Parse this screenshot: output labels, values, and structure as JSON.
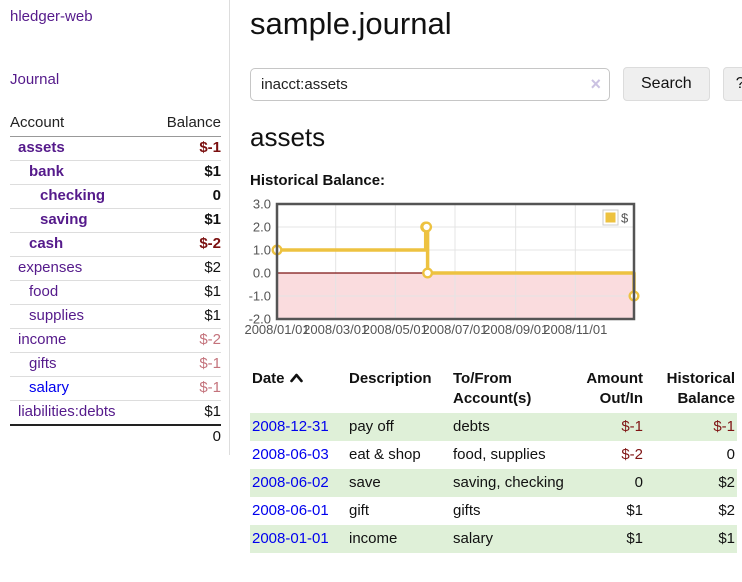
{
  "sidebar": {
    "brand": "hledger-web",
    "journal_link": "Journal",
    "accounts_header": "Account",
    "balance_header": "Balance",
    "accounts": [
      {
        "name": "assets",
        "depth": 1,
        "bold": true,
        "link_color": "purple",
        "balance": "$-1",
        "balance_tone": "neg-strong"
      },
      {
        "name": "bank",
        "depth": 2,
        "bold": true,
        "link_color": "purple",
        "balance": "$1",
        "balance_tone": "normal"
      },
      {
        "name": "checking",
        "depth": 3,
        "bold": true,
        "link_color": "purple",
        "balance": "0",
        "balance_tone": "normal"
      },
      {
        "name": "saving",
        "depth": 3,
        "bold": true,
        "link_color": "purple",
        "balance": "$1",
        "balance_tone": "normal"
      },
      {
        "name": "cash",
        "depth": 2,
        "bold": true,
        "link_color": "purple",
        "balance": "$-2",
        "balance_tone": "neg-strong"
      },
      {
        "name": "expenses",
        "depth": 1,
        "bold": false,
        "link_color": "purple",
        "balance": "$2",
        "balance_tone": "normal"
      },
      {
        "name": "food",
        "depth": 2,
        "bold": false,
        "link_color": "purple",
        "balance": "$1",
        "balance_tone": "normal"
      },
      {
        "name": "supplies",
        "depth": 2,
        "bold": false,
        "link_color": "purple",
        "balance": "$1",
        "balance_tone": "normal"
      },
      {
        "name": "income",
        "depth": 1,
        "bold": false,
        "link_color": "purple",
        "balance": "$-2",
        "balance_tone": "neg-dim"
      },
      {
        "name": "gifts",
        "depth": 2,
        "bold": false,
        "link_color": "purple",
        "balance": "$-1",
        "balance_tone": "neg-dim"
      },
      {
        "name": "salary",
        "depth": 2,
        "bold": false,
        "link_color": "blue",
        "balance": "$-1",
        "balance_tone": "neg-dim"
      },
      {
        "name": "liabilities:debts",
        "depth": 1,
        "bold": false,
        "link_color": "purple",
        "balance": "$1",
        "balance_tone": "normal"
      }
    ],
    "total": "0"
  },
  "main": {
    "title": "sample.journal",
    "search": {
      "value": "inacct:assets",
      "button_label": "Search",
      "help_label": "?",
      "clear_icon": "×"
    },
    "account_heading": "assets"
  },
  "chart_data": {
    "type": "line",
    "title": "Historical Balance:",
    "style": "steps",
    "xlim": [
      "2008-01-01",
      "2008-12-31"
    ],
    "ylim": [
      -2,
      3
    ],
    "y_ticks": [
      3,
      2,
      1,
      0,
      -1,
      -2
    ],
    "x_ticks": [
      "2008/01/01",
      "2008/03/01",
      "2008/05/01",
      "2008/07/01",
      "2008/09/01",
      "2008/11/01"
    ],
    "series": [
      {
        "name": "$",
        "color": "#EDC240",
        "points": [
          [
            "2008-01-01",
            1
          ],
          [
            "2008-06-01",
            2
          ],
          [
            "2008-06-02",
            2
          ],
          [
            "2008-06-03",
            0
          ],
          [
            "2008-12-31",
            -1
          ]
        ]
      }
    ],
    "legend_position": "top-right",
    "colors": {
      "grid": "#e4e4e4",
      "border": "#545454",
      "axis_text": "#545454",
      "zero_line": "#7C1313",
      "negative_region": "#FADCDE"
    }
  },
  "register": {
    "headers": {
      "date": "Date",
      "description": "Description",
      "accounts": "To/From Account(s)",
      "amount": "Amount Out/In",
      "balance": "Historical Balance"
    },
    "sort_direction": "ascending",
    "row_stripe_color": "#DFF0D8",
    "rows": [
      {
        "date": "2008-12-31",
        "description": "pay off",
        "accounts": "debts",
        "amount": "$-1",
        "amount_tone": "neg",
        "balance": "$-1",
        "balance_tone": "neg"
      },
      {
        "date": "2008-06-03",
        "description": "eat & shop",
        "accounts": "food, supplies",
        "amount": "$-2",
        "amount_tone": "neg",
        "balance": "0",
        "balance_tone": "normal"
      },
      {
        "date": "2008-06-02",
        "description": "save",
        "accounts": "saving, checking",
        "amount": "0",
        "amount_tone": "normal",
        "balance": "$2",
        "balance_tone": "normal"
      },
      {
        "date": "2008-06-01",
        "description": "gift",
        "accounts": "gifts",
        "amount": "$1",
        "amount_tone": "normal",
        "balance": "$2",
        "balance_tone": "normal"
      },
      {
        "date": "2008-01-01",
        "description": "income",
        "accounts": "salary",
        "amount": "$1",
        "amount_tone": "normal",
        "balance": "$1",
        "balance_tone": "normal"
      }
    ]
  },
  "colors": {
    "link_purple": "#551A8B",
    "link_blue": "#0000EE",
    "neg_strong": "#7B1010",
    "neg_dim": "#C4737C"
  }
}
